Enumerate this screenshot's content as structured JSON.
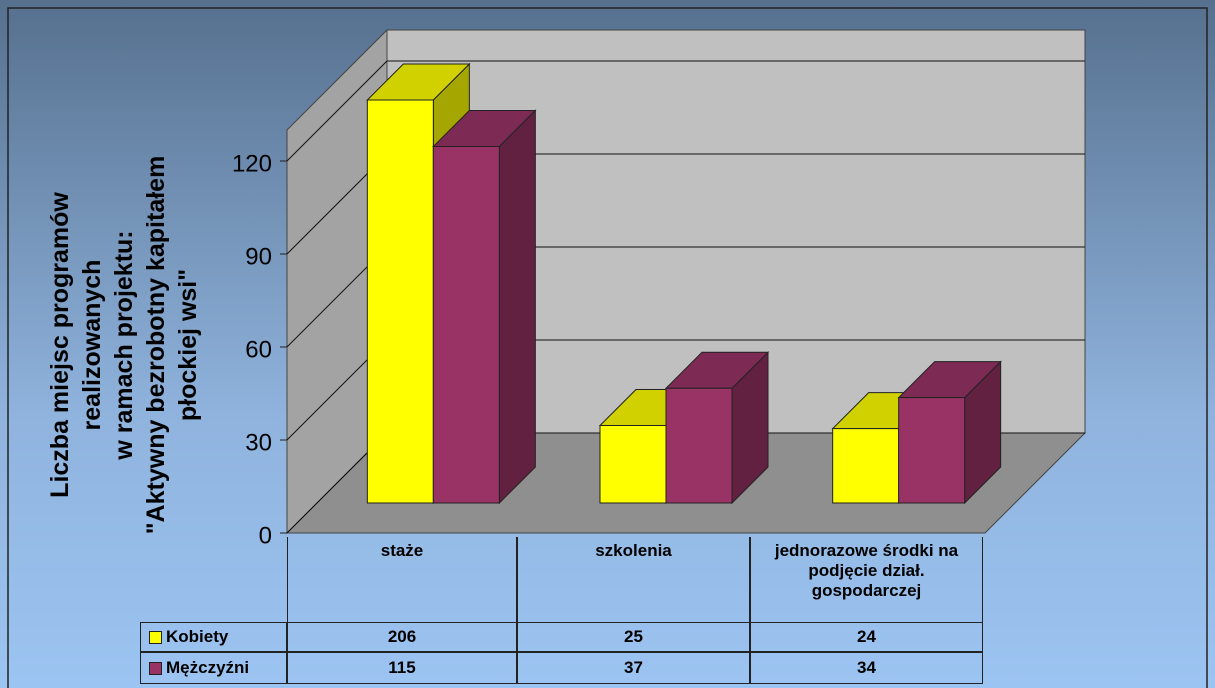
{
  "chart_data": {
    "type": "bar3d",
    "y_label": [
      "Liczba miejsc programów",
      "realizowanych",
      "w ramach projektu:",
      "\"Aktywny bezrobotny kapitałem",
      "płockiej wsi\""
    ],
    "categories": [
      "staże",
      "szkolenia",
      "jednorazowe środki na podjęcie dział. gospodarczej"
    ],
    "series": [
      {
        "name": "Kobiety",
        "color": "#ffff00",
        "values": [
          206,
          25,
          24
        ]
      },
      {
        "name": "Mężczyźni",
        "color": "#993366",
        "values": [
          115,
          37,
          34
        ]
      }
    ],
    "ylim": [
      0,
      130
    ],
    "yticks": [
      0,
      30,
      60,
      90,
      120
    ],
    "grid": true
  }
}
